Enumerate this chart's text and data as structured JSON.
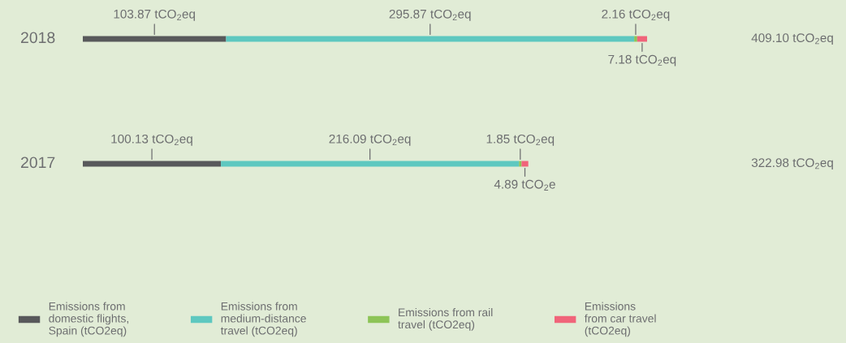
{
  "chart_data": {
    "type": "bar",
    "orientation": "horizontal",
    "stacked": true,
    "categories": [
      "2018",
      "2017"
    ],
    "series": [
      {
        "name": "Emissions from\ndomestic flights,\nSpain (tCO2eq)",
        "color": "#58595b",
        "values": [
          103.87,
          100.13
        ],
        "value_labels": [
          "103.87 tCO$_{2}$eq",
          "100.13 tCO$_{2}$eq"
        ]
      },
      {
        "name": "Emissions from\nmedium-distance\ntravel (tCO2eq)",
        "color": "#5ec8c0",
        "values": [
          295.87,
          216.09
        ],
        "value_labels": [
          "295.87 tCO$_{2}$eq",
          "216.09 tCO$_{2}$eq"
        ]
      },
      {
        "name": "Emissions from rail\ntravel (tCO2eq)",
        "color": "#8dc457",
        "values": [
          2.16,
          1.85
        ],
        "value_labels": [
          "2.16 tCO$_{2}$eq",
          "1.85 tCO$_{2}$eq"
        ]
      },
      {
        "name": "Emissions\nfrom car travel\n(tCO2eq)",
        "color": "#f0647a",
        "values": [
          7.18,
          4.89
        ],
        "value_labels": [
          "7.18 tCO$_{2}$eq",
          "4.89 tCO$_{2}$e"
        ]
      }
    ],
    "annotations": [
      "409.10 tCO$_{2}$eq",
      "322.98 tCO$_{2}$eq"
    ],
    "legend": "bottom",
    "grid": false
  }
}
